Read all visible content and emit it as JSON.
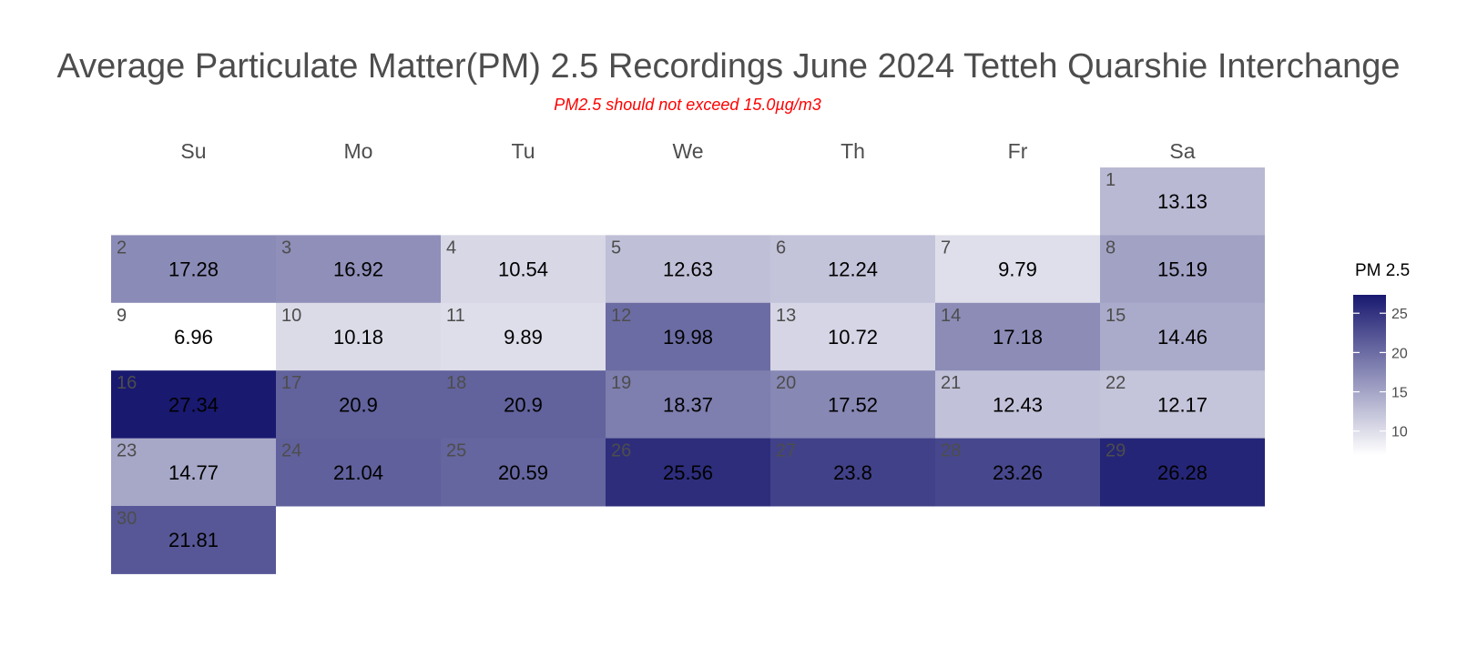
{
  "chart_data": {
    "type": "heatmap",
    "title": "Average Particulate Matter(PM) 2.5 Recordings June 2024 Tetteh Quarshie Interchange",
    "subtitle": "PM2.5 should not exceed 15.0µg/m3",
    "weekdays": [
      "Su",
      "Mo",
      "Tu",
      "We",
      "Th",
      "Fr",
      "Sa"
    ],
    "first_weekday_index": 6,
    "days": [
      {
        "day": "1",
        "value": 13.13
      },
      {
        "day": "2",
        "value": 17.28
      },
      {
        "day": "3",
        "value": 16.92
      },
      {
        "day": "4",
        "value": 10.54
      },
      {
        "day": "5",
        "value": 12.63
      },
      {
        "day": "6",
        "value": 12.24
      },
      {
        "day": "7",
        "value": 9.79
      },
      {
        "day": "8",
        "value": 15.19
      },
      {
        "day": "9",
        "value": 6.96
      },
      {
        "day": "10",
        "value": 10.18
      },
      {
        "day": "11",
        "value": 9.89
      },
      {
        "day": "12",
        "value": 19.98
      },
      {
        "day": "13",
        "value": 10.72
      },
      {
        "day": "14",
        "value": 17.18
      },
      {
        "day": "15",
        "value": 14.46
      },
      {
        "day": "16",
        "value": 27.34
      },
      {
        "day": "17",
        "value": 20.9
      },
      {
        "day": "18",
        "value": 20.9
      },
      {
        "day": "19",
        "value": 18.37
      },
      {
        "day": "20",
        "value": 17.52
      },
      {
        "day": "21",
        "value": 12.43
      },
      {
        "day": "22",
        "value": 12.17
      },
      {
        "day": "23",
        "value": 14.77
      },
      {
        "day": "24",
        "value": 21.04
      },
      {
        "day": "25",
        "value": 20.59
      },
      {
        "day": "26",
        "value": 25.56
      },
      {
        "day": "27",
        "value": 23.8
      },
      {
        "day": "28",
        "value": 23.26
      },
      {
        "day": "29",
        "value": 26.28
      },
      {
        "day": "30",
        "value": 21.81
      }
    ],
    "color_scale": {
      "title": "PM 2.5",
      "low_color": "#ffffff",
      "high_color": "#191970",
      "min": 6.96,
      "max": 27.34,
      "ticks": [
        10,
        15,
        20,
        25
      ]
    }
  }
}
